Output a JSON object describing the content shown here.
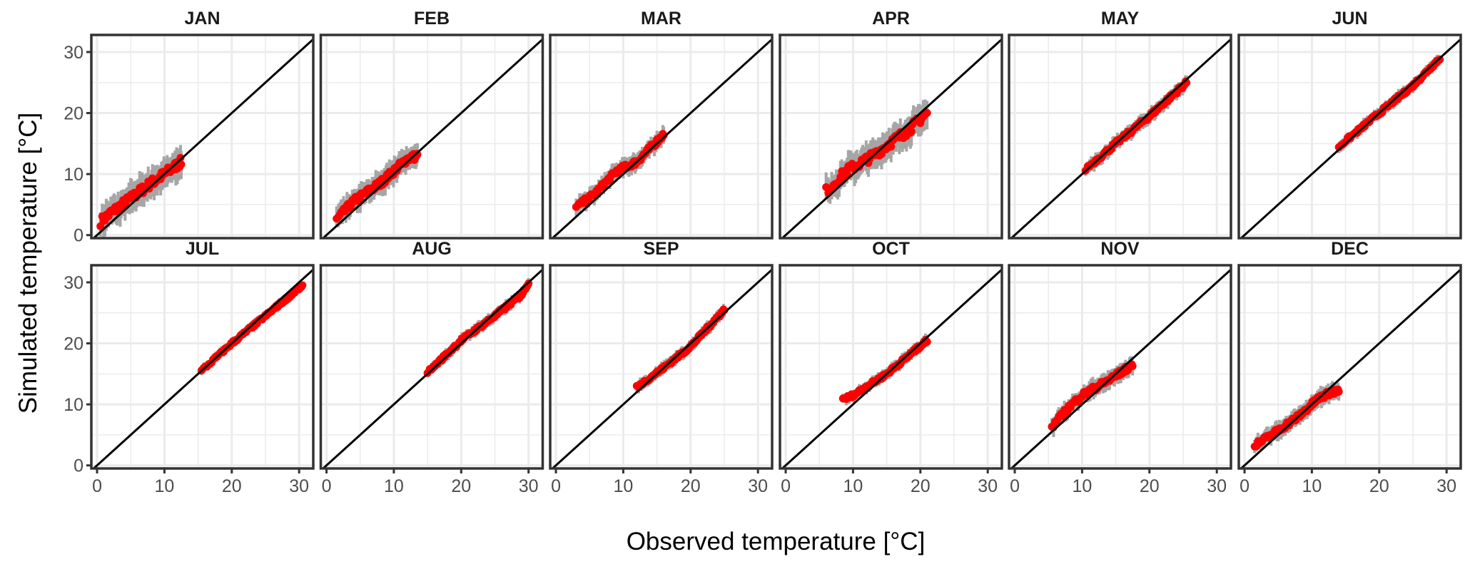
{
  "chart_data": {
    "type": "scatter",
    "title": "",
    "xlabel": "Observed temperature [°C]",
    "ylabel": "Simulated temperature [°C]",
    "xlim": [
      -0.85,
      32.1
    ],
    "ylim": [
      -0.5,
      32.8
    ],
    "x_ticks": [
      "0",
      "10",
      "20",
      "30"
    ],
    "y_ticks": [
      "0",
      "10",
      "20",
      "30"
    ],
    "x_tick_values": [
      0,
      10,
      20,
      30
    ],
    "y_tick_values": [
      0,
      10,
      20,
      30
    ],
    "grid": true,
    "reference_line": "1:1",
    "colors": {
      "points": "#ff0000",
      "ribbon": "#a6a6a6",
      "line": "#000000",
      "grid": "#ebebeb",
      "border": "#333333"
    },
    "facets": [
      {
        "label": "JAN",
        "spread": 2.5,
        "points": [
          [
            0.5,
            2.2
          ],
          [
            2,
            3.6
          ],
          [
            5,
            6
          ],
          [
            8,
            8.5
          ],
          [
            10,
            10
          ],
          [
            12.5,
            12
          ]
        ]
      },
      {
        "label": "FEB",
        "spread": 2.0,
        "points": [
          [
            1.5,
            2.5
          ],
          [
            4,
            5.5
          ],
          [
            8,
            8.5
          ],
          [
            12,
            12.5
          ],
          [
            13.5,
            13
          ]
        ]
      },
      {
        "label": "MAR",
        "spread": 1.5,
        "points": [
          [
            3,
            4.5
          ],
          [
            6,
            7
          ],
          [
            9,
            10.5
          ],
          [
            12,
            12
          ],
          [
            16,
            16.5
          ]
        ]
      },
      {
        "label": "APR",
        "spread": 2.5,
        "points": [
          [
            6,
            7.2
          ],
          [
            9,
            10.5
          ],
          [
            13,
            13
          ],
          [
            16,
            15.5
          ],
          [
            18,
            17
          ],
          [
            21,
            20
          ]
        ]
      },
      {
        "label": "MAY",
        "spread": 1.2,
        "points": [
          [
            10.5,
            10.8
          ],
          [
            15,
            15
          ],
          [
            20,
            19.5
          ],
          [
            25.5,
            25
          ]
        ]
      },
      {
        "label": "JUN",
        "spread": 1.0,
        "points": [
          [
            14,
            14.5
          ],
          [
            20,
            20
          ],
          [
            25,
            24.5
          ],
          [
            29,
            29
          ]
        ]
      },
      {
        "label": "JUL",
        "spread": 0.8,
        "points": [
          [
            15.5,
            15.5
          ],
          [
            20,
            20
          ],
          [
            25,
            24.5
          ],
          [
            30.5,
            29.5
          ]
        ]
      },
      {
        "label": "AUG",
        "spread": 1.0,
        "points": [
          [
            15,
            15.2
          ],
          [
            20,
            20.5
          ],
          [
            25,
            24.5
          ],
          [
            29,
            28
          ],
          [
            30,
            30
          ]
        ]
      },
      {
        "label": "SEP",
        "spread": 1.0,
        "points": [
          [
            12,
            12.8
          ],
          [
            16,
            16
          ],
          [
            20,
            19.5
          ],
          [
            25,
            25.5
          ]
        ]
      },
      {
        "label": "OCT",
        "spread": 1.0,
        "points": [
          [
            8.5,
            10.8
          ],
          [
            10,
            11.5
          ],
          [
            15,
            15
          ],
          [
            21,
            20.5
          ]
        ]
      },
      {
        "label": "NOV",
        "spread": 1.5,
        "points": [
          [
            5.5,
            6.3
          ],
          [
            8,
            9.5
          ],
          [
            10,
            11.5
          ],
          [
            14,
            14
          ],
          [
            17.5,
            16.5
          ]
        ]
      },
      {
        "label": "DEC",
        "spread": 1.5,
        "points": [
          [
            1.5,
            3.2
          ],
          [
            4,
            5
          ],
          [
            8,
            8
          ],
          [
            11,
            11
          ],
          [
            14,
            12.5
          ]
        ]
      }
    ]
  }
}
